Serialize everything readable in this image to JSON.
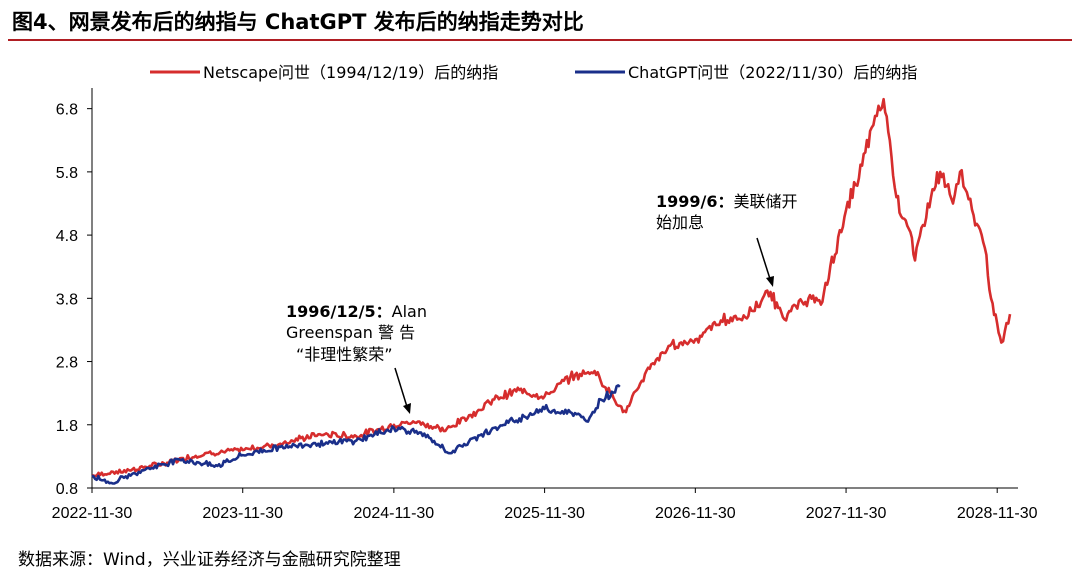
{
  "figure_title": "图4、网景发布后的纳指与 ChatGPT 发布后的纳指走势对比",
  "source": "数据来源：Wind，兴业证券经济与金融研究院整理",
  "colors": {
    "netscape": "#d62d2d",
    "chatgpt": "#1a2f8a",
    "accent": "#b01e23"
  },
  "chart_data": {
    "type": "line",
    "title": "",
    "xlabel": "",
    "ylabel": "",
    "ylim": [
      0.8,
      7.0
    ],
    "y_ticks": [
      "0.8",
      "1.8",
      "2.8",
      "3.8",
      "4.8",
      "5.8",
      "6.8"
    ],
    "x_ticks": [
      "2022-11-30",
      "2023-11-30",
      "2024-11-30",
      "2025-11-30",
      "2026-11-30",
      "2027-11-30",
      "2028-11-30"
    ],
    "xlim": [
      "2022-11-30",
      "2028-12-31"
    ],
    "legend_position": "top",
    "series": [
      {
        "name": "Netscape问世（1994/12/19）后的纳指",
        "color": "#d62d2d",
        "points": [
          [
            "2022-11-30",
            1.0
          ],
          [
            "2023-02-28",
            1.08
          ],
          [
            "2023-05-31",
            1.2
          ],
          [
            "2023-08-31",
            1.35
          ],
          [
            "2023-11-30",
            1.4
          ],
          [
            "2024-02-29",
            1.5
          ],
          [
            "2024-05-31",
            1.65
          ],
          [
            "2024-08-31",
            1.62
          ],
          [
            "2024-11-30",
            1.8
          ],
          [
            "2025-01-31",
            1.85
          ],
          [
            "2025-03-31",
            1.7
          ],
          [
            "2025-05-31",
            1.95
          ],
          [
            "2025-07-31",
            2.2
          ],
          [
            "2025-09-30",
            2.35
          ],
          [
            "2025-11-30",
            2.25
          ],
          [
            "2026-01-31",
            2.55
          ],
          [
            "2026-03-31",
            2.65
          ],
          [
            "2026-05-31",
            2.1
          ],
          [
            "2026-06-15",
            2.0
          ],
          [
            "2026-07-31",
            2.6
          ],
          [
            "2026-09-30",
            3.05
          ],
          [
            "2026-11-30",
            3.15
          ],
          [
            "2027-01-31",
            3.45
          ],
          [
            "2027-03-31",
            3.5
          ],
          [
            "2027-05-31",
            3.9
          ],
          [
            "2027-06-30",
            3.5
          ],
          [
            "2027-08-31",
            3.8
          ],
          [
            "2027-09-30",
            3.7
          ],
          [
            "2027-11-30",
            5.2
          ],
          [
            "2027-12-31",
            5.7
          ],
          [
            "2028-01-31",
            6.5
          ],
          [
            "2028-02-29",
            6.95
          ],
          [
            "2028-03-15",
            6.3
          ],
          [
            "2028-03-31",
            5.4
          ],
          [
            "2028-04-30",
            4.9
          ],
          [
            "2028-05-15",
            4.4
          ],
          [
            "2028-06-15",
            5.3
          ],
          [
            "2028-07-15",
            5.8
          ],
          [
            "2028-08-15",
            5.3
          ],
          [
            "2028-09-01",
            5.8
          ],
          [
            "2028-09-30",
            5.2
          ],
          [
            "2028-10-31",
            4.6
          ],
          [
            "2028-11-15",
            3.8
          ],
          [
            "2028-11-30",
            3.4
          ],
          [
            "2028-12-10",
            3.1
          ],
          [
            "2028-12-31",
            3.55
          ]
        ]
      },
      {
        "name": "ChatGPT问世（2022/11/30）后的纳指",
        "color": "#1a2f8a",
        "points": [
          [
            "2022-11-30",
            1.0
          ],
          [
            "2023-01-15",
            0.88
          ],
          [
            "2023-03-31",
            1.08
          ],
          [
            "2023-06-30",
            1.25
          ],
          [
            "2023-09-30",
            1.15
          ],
          [
            "2023-11-30",
            1.32
          ],
          [
            "2024-02-29",
            1.45
          ],
          [
            "2024-05-31",
            1.5
          ],
          [
            "2024-08-31",
            1.55
          ],
          [
            "2024-11-30",
            1.75
          ],
          [
            "2025-01-31",
            1.68
          ],
          [
            "2025-03-31",
            1.42
          ],
          [
            "2025-04-15",
            1.35
          ],
          [
            "2025-06-30",
            1.65
          ],
          [
            "2025-09-30",
            1.9
          ],
          [
            "2025-11-30",
            2.05
          ],
          [
            "2026-01-31",
            2.0
          ],
          [
            "2026-03-15",
            1.85
          ],
          [
            "2026-04-15",
            2.2
          ],
          [
            "2026-05-31",
            2.4
          ]
        ]
      }
    ],
    "annotations": [
      {
        "bold": "1996/12/5：",
        "lines": [
          "Alan",
          "Greenspan 警 告",
          "“非理性繁荣”"
        ]
      },
      {
        "bold": "1999/6：",
        "lines": [
          "美联储开",
          "始加息"
        ]
      }
    ]
  }
}
